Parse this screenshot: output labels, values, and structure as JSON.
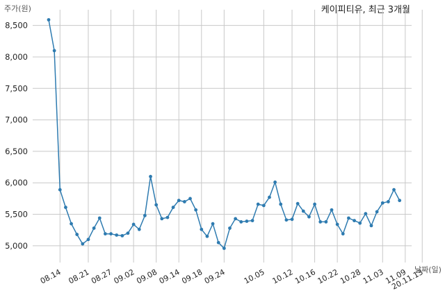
{
  "chart_data": {
    "type": "line",
    "title": "케이피티유, 최근 3개월",
    "ylabel": "주가(원)",
    "xlabel": "날짜(일)",
    "ylim": [
      4800,
      8750
    ],
    "yticks": [
      5000,
      5500,
      6000,
      6500,
      7000,
      7500,
      8000,
      8500
    ],
    "ytick_labels": [
      "5,000",
      "5,500",
      "6,000",
      "6,500",
      "7,000",
      "7,500",
      "8,000",
      "8,500"
    ],
    "xtick_labels": [
      "08.14",
      "08.21",
      "08.27",
      "09.02",
      "09.08",
      "09.14",
      "09.18",
      "09.24",
      "10.05",
      "10.12",
      "10.16",
      "10.22",
      "10.28",
      "11.03",
      "11.09",
      "20.11.13"
    ],
    "xtick_index": [
      2,
      7,
      11,
      15,
      19,
      23,
      27,
      31,
      38,
      43,
      47,
      51,
      55,
      59,
      63,
      66
    ],
    "grid": true,
    "colors": {
      "line": "#2e7bb0",
      "grid": "#c8c8c8"
    },
    "series": [
      {
        "values": [
          8590,
          8100,
          5890,
          5610,
          5350,
          5180,
          5030,
          5100,
          5280,
          5440,
          5190,
          5190,
          5170,
          5160,
          5200,
          5340,
          5260,
          5480,
          6100,
          5650,
          5430,
          5450,
          5610,
          5720,
          5700,
          5750,
          5570,
          5260,
          5150,
          5350,
          5050,
          4960,
          5280,
          5430,
          5380,
          5390,
          5400,
          5660,
          5640,
          5770,
          6010,
          5660,
          5410,
          5420,
          5670,
          5550,
          5460,
          5660,
          5380,
          5380,
          5570,
          5340,
          5190,
          5440,
          5400,
          5360,
          5510,
          5320,
          5540,
          5680,
          5700,
          5890,
          5720
        ]
      }
    ]
  }
}
